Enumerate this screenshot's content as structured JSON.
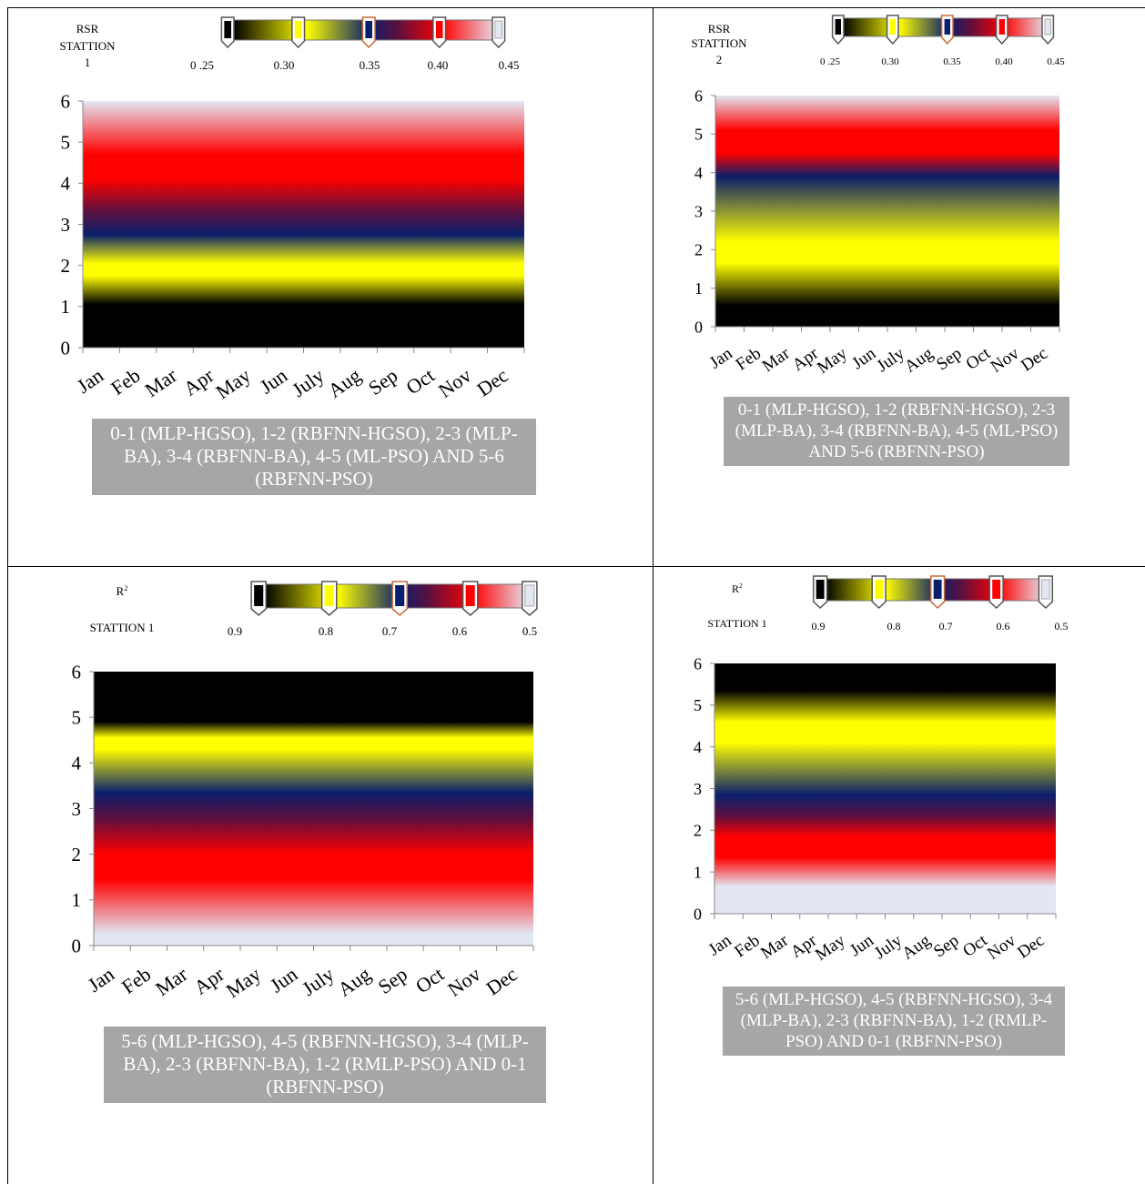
{
  "palette": {
    "black": "#000000",
    "yellow": "#ffff00",
    "navy": "#0a1f6b",
    "purple": "#5a1040",
    "red": "#ff0000",
    "lavender": "#e3e7f4"
  },
  "panels": [
    {
      "metric_label": "RSR",
      "station_label": "STATTION",
      "station_number": "1",
      "caption": "0-1 (MLP-HGSO), 1-2 (RBFNN-HGSO), 2-3 (MLP-BA), 3-4 (RBFNN-BA), 4-5 (ML-PSO) AND 5-6 (RBFNN-PSO)",
      "colorbar_ticks": [
        "0 .25",
        "0.30",
        "0.35",
        "0.40",
        "0.45"
      ]
    },
    {
      "metric_label": "RSR",
      "station_label": "STATTION",
      "station_number": "2",
      "caption": "0-1 (MLP-HGSO), 1-2 (RBFNN-HGSO), 2-3 (MLP-BA), 3-4 (RBFNN-BA), 4-5 (ML-PSO) AND 5-6 (RBFNN-PSO)",
      "colorbar_ticks": [
        "0 .25",
        "0.30",
        "0.35",
        "0.40",
        "0.45"
      ]
    },
    {
      "metric_label": "R2",
      "station_label": "STATTION 1",
      "station_number": "",
      "caption": "5-6 (MLP-HGSO), 4-5 (RBFNN-HGSO), 3-4 (MLP-BA), 2-3 (RBFNN-BA), 1-2 (RMLP-PSO) AND 0-1 (RBFNN-PSO)",
      "colorbar_ticks": [
        "0.9",
        "0.8",
        "0.7",
        "0.6",
        "0.5"
      ]
    },
    {
      "metric_label": "R2",
      "station_label": "STATTION 1",
      "station_number": "",
      "caption": "5-6 (MLP-HGSO), 4-5 (RBFNN-HGSO), 3-4 (MLP-BA), 2-3 (RBFNN-BA), 1-2 (RMLP-PSO) AND 0-1 (RBFNN-PSO)",
      "colorbar_ticks": [
        "0.9",
        "0.8",
        "0.7",
        "0.6",
        "0.5"
      ]
    }
  ],
  "chart_data": [
    {
      "type": "heatmap",
      "categories": [
        "Jan",
        "Feb",
        "Mar",
        "Apr",
        "May",
        "Jun",
        "July",
        "Aug",
        "Sep",
        "Oct",
        "Nov",
        "Dec"
      ],
      "yticks": [
        "0",
        "1",
        "2",
        "3",
        "4",
        "5",
        "6"
      ],
      "ylim": [
        0,
        6
      ],
      "color_scale": [
        0.25,
        0.45
      ],
      "gradient_stops": [
        {
          "y": 0,
          "color": "black"
        },
        {
          "y": 1.05,
          "color": "black"
        },
        {
          "y": 1.75,
          "color": "yellow"
        },
        {
          "y": 2.05,
          "color": "yellow"
        },
        {
          "y": 2.75,
          "color": "navy"
        },
        {
          "y": 3.3,
          "color": "purple"
        },
        {
          "y": 4.1,
          "color": "red"
        },
        {
          "y": 4.7,
          "color": "red"
        },
        {
          "y": 6,
          "color": "lavender"
        }
      ]
    },
    {
      "type": "heatmap",
      "categories": [
        "Jan",
        "Feb",
        "Mar",
        "Apr",
        "May",
        "Jun",
        "July",
        "Aug",
        "Sep",
        "Oct",
        "Nov",
        "Dec"
      ],
      "yticks": [
        "0",
        "1",
        "2",
        "3",
        "4",
        "5",
        "6"
      ],
      "ylim": [
        0,
        6
      ],
      "color_scale": [
        0.25,
        0.45
      ],
      "gradient_stops": [
        {
          "y": 0,
          "color": "black"
        },
        {
          "y": 0.55,
          "color": "black"
        },
        {
          "y": 1.65,
          "color": "yellow"
        },
        {
          "y": 2.2,
          "color": "yellow"
        },
        {
          "y": 3.9,
          "color": "navy"
        },
        {
          "y": 4.5,
          "color": "red"
        },
        {
          "y": 5.1,
          "color": "red"
        },
        {
          "y": 6,
          "color": "lavender"
        }
      ]
    },
    {
      "type": "heatmap",
      "categories": [
        "Jan",
        "Feb",
        "Mar",
        "Apr",
        "May",
        "Jun",
        "July",
        "Aug",
        "Sep",
        "Oct",
        "Nov",
        "Dec"
      ],
      "yticks": [
        "0",
        "1",
        "2",
        "3",
        "4",
        "5",
        "6"
      ],
      "ylim": [
        0,
        6
      ],
      "color_scale": [
        0.9,
        0.5
      ],
      "gradient_stops": [
        {
          "y": 0,
          "color": "lavender"
        },
        {
          "y": 0.25,
          "color": "lavender"
        },
        {
          "y": 1.45,
          "color": "red"
        },
        {
          "y": 2.0,
          "color": "red"
        },
        {
          "y": 2.8,
          "color": "purple"
        },
        {
          "y": 3.35,
          "color": "navy"
        },
        {
          "y": 4.3,
          "color": "yellow"
        },
        {
          "y": 4.55,
          "color": "yellow"
        },
        {
          "y": 4.9,
          "color": "black"
        },
        {
          "y": 6,
          "color": "black"
        }
      ]
    },
    {
      "type": "heatmap",
      "categories": [
        "Jan",
        "Feb",
        "Mar",
        "Apr",
        "May",
        "Jun",
        "July",
        "Aug",
        "Sep",
        "Oct",
        "Nov",
        "Dec"
      ],
      "yticks": [
        "0",
        "1",
        "2",
        "3",
        "4",
        "5",
        "6"
      ],
      "ylim": [
        0,
        6
      ],
      "color_scale": [
        0.9,
        0.5
      ],
      "gradient_stops": [
        {
          "y": 0,
          "color": "lavender"
        },
        {
          "y": 0.65,
          "color": "lavender"
        },
        {
          "y": 1.35,
          "color": "red"
        },
        {
          "y": 1.85,
          "color": "red"
        },
        {
          "y": 2.35,
          "color": "purple"
        },
        {
          "y": 2.85,
          "color": "navy"
        },
        {
          "y": 4.1,
          "color": "yellow"
        },
        {
          "y": 4.6,
          "color": "yellow"
        },
        {
          "y": 5.35,
          "color": "black"
        },
        {
          "y": 6,
          "color": "black"
        }
      ]
    }
  ]
}
